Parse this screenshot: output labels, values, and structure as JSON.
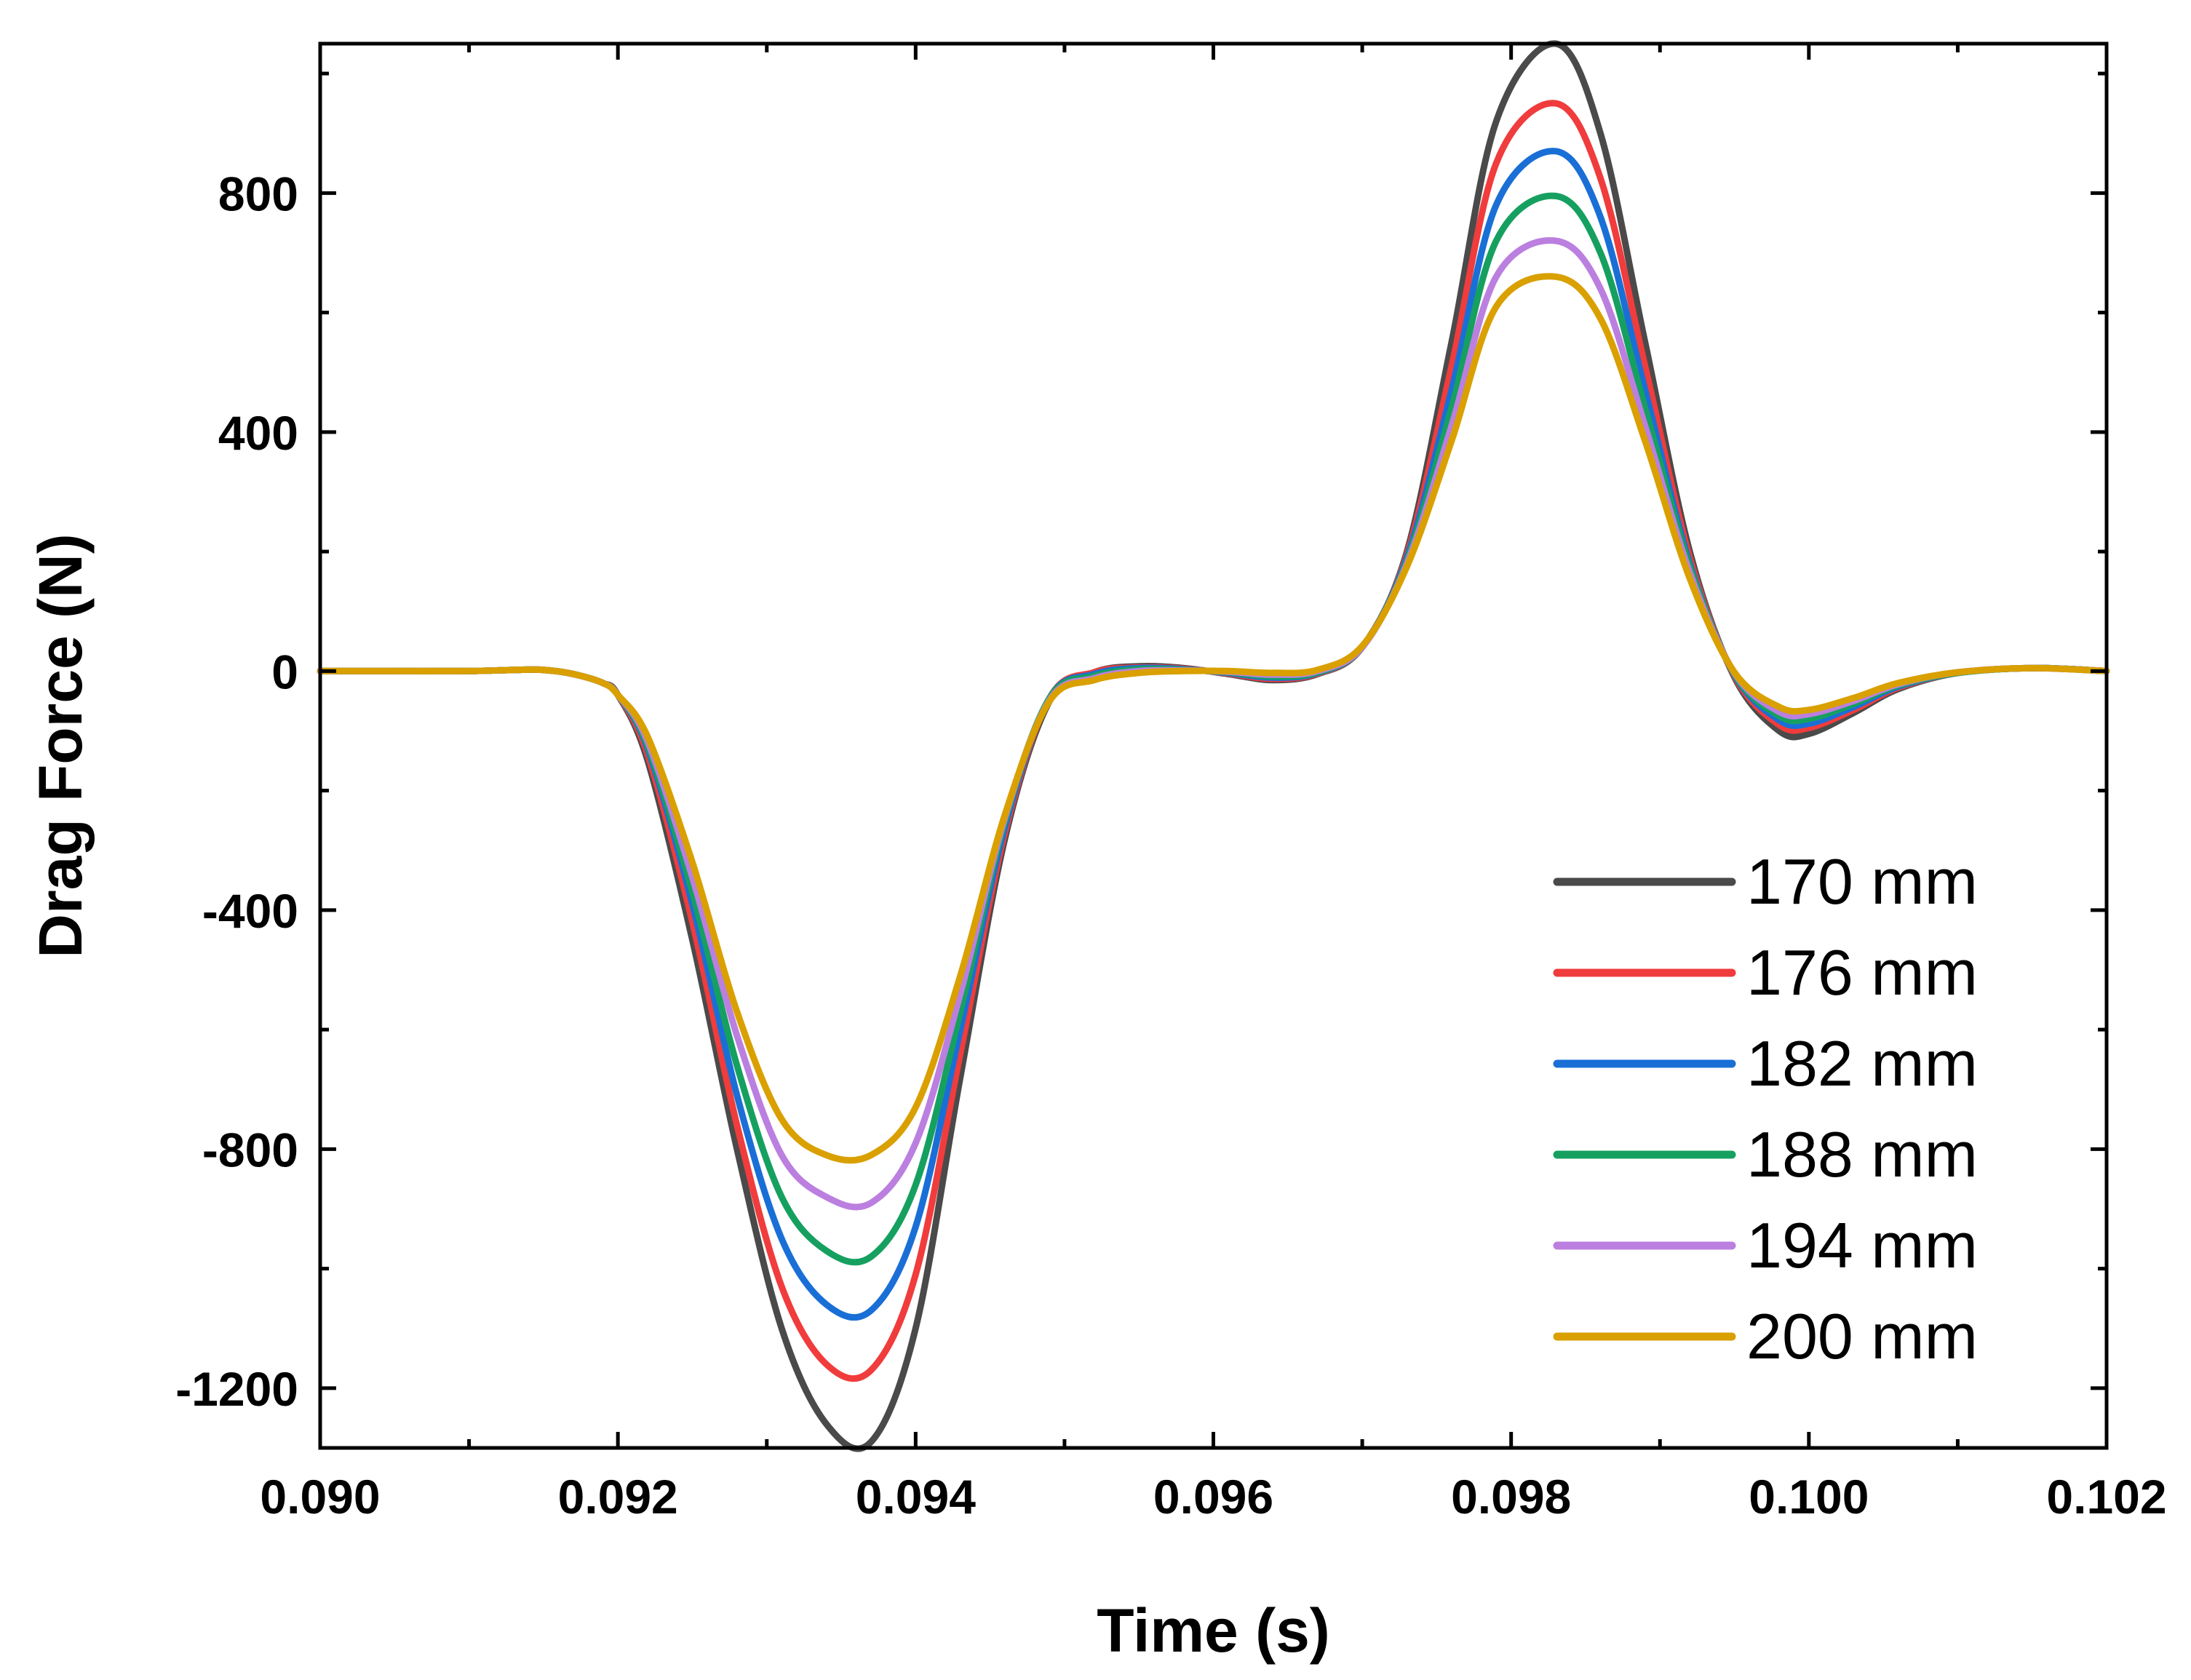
{
  "chart_data": {
    "type": "line",
    "title": "",
    "xlabel": "Time (s)",
    "ylabel": "Drag Force (N)",
    "xlim": [
      0.09,
      0.102
    ],
    "ylim": [
      -1300,
      1050
    ],
    "x_ticks": [
      "0.090",
      "0.092",
      "0.094",
      "0.096",
      "0.098",
      "0.100",
      "0.102"
    ],
    "x_tick_values": [
      0.09,
      0.092,
      0.094,
      0.096,
      0.098,
      0.1,
      0.102
    ],
    "y_ticks": [
      "-1200",
      "-800",
      "-400",
      "0",
      "400",
      "800"
    ],
    "y_tick_values": [
      -1200,
      -800,
      -400,
      0,
      400,
      800
    ],
    "grid": false,
    "legend_position": "bottom-right",
    "x": [
      0.09,
      0.0905,
      0.091,
      0.0913,
      0.0915,
      0.0917,
      0.0919,
      0.092,
      0.0922,
      0.0925,
      0.0928,
      0.0931,
      0.0934,
      0.0937,
      0.094,
      0.0943,
      0.0946,
      0.0949,
      0.0952,
      0.0955,
      0.0958,
      0.0961,
      0.0964,
      0.0967,
      0.097,
      0.0973,
      0.0976,
      0.0979,
      0.0983,
      0.0986,
      0.0989,
      0.0992,
      0.0995,
      0.0998,
      0.1,
      0.1003,
      0.1006,
      0.101,
      0.1015,
      0.102
    ],
    "series": [
      {
        "name": "170 mm",
        "color": "#4a4a4a",
        "values": [
          0,
          0,
          0,
          2,
          2,
          -5,
          -20,
          -40,
          -150,
          -450,
          -800,
          -1100,
          -1260,
          -1290,
          -1100,
          -680,
          -280,
          -50,
          -2,
          8,
          5,
          -5,
          -15,
          -5,
          40,
          200,
          550,
          920,
          1050,
          900,
          550,
          200,
          -10,
          -100,
          -105,
          -70,
          -30,
          -3,
          5,
          0
        ]
      },
      {
        "name": "176 mm",
        "color": "#f03c3c",
        "values": [
          0,
          0,
          0,
          2,
          2,
          -5,
          -20,
          -40,
          -140,
          -420,
          -760,
          -1030,
          -1160,
          -1170,
          -1010,
          -640,
          -270,
          -45,
          -2,
          6,
          4,
          -4,
          -13,
          -4,
          40,
          195,
          510,
          850,
          950,
          825,
          510,
          190,
          -8,
          -90,
          -95,
          -65,
          -28,
          -3,
          5,
          0
        ]
      },
      {
        "name": "182 mm",
        "color": "#1a6fd6",
        "values": [
          0,
          0,
          0,
          2,
          2,
          -5,
          -20,
          -40,
          -130,
          -390,
          -710,
          -950,
          -1060,
          -1070,
          -930,
          -600,
          -260,
          -45,
          -5,
          5,
          3,
          -3,
          -11,
          -3,
          40,
          190,
          470,
          780,
          870,
          760,
          470,
          180,
          -6,
          -82,
          -88,
          -60,
          -26,
          -3,
          5,
          0
        ]
      },
      {
        "name": "188 mm",
        "color": "#16a060",
        "values": [
          0,
          0,
          0,
          2,
          2,
          -5,
          -20,
          -40,
          -125,
          -370,
          -660,
          -880,
          -970,
          -980,
          -860,
          -570,
          -250,
          -45,
          -8,
          3,
          2,
          -2,
          -9,
          -2,
          40,
          185,
          440,
          720,
          795,
          700,
          440,
          175,
          -5,
          -75,
          -80,
          -55,
          -24,
          -3,
          5,
          0
        ]
      },
      {
        "name": "194 mm",
        "color": "#bb7fe0",
        "values": [
          0,
          0,
          0,
          2,
          2,
          -5,
          -20,
          -40,
          -118,
          -345,
          -610,
          -810,
          -880,
          -890,
          -790,
          -540,
          -245,
          -48,
          -12,
          0,
          1,
          -1,
          -6,
          0,
          40,
          180,
          410,
          660,
          720,
          640,
          410,
          165,
          -3,
          -68,
          -72,
          -50,
          -22,
          -2,
          5,
          0
        ]
      },
      {
        "name": "200 mm",
        "color": "#d9a000",
        "values": [
          0,
          0,
          0,
          2,
          2,
          -5,
          -20,
          -40,
          -110,
          -320,
          -570,
          -750,
          -810,
          -810,
          -730,
          -510,
          -240,
          -50,
          -15,
          -3,
          0,
          0,
          -3,
          2,
          42,
          175,
          385,
          610,
          660,
          590,
          385,
          155,
          -2,
          -60,
          -65,
          -45,
          -20,
          -2,
          5,
          0
        ]
      }
    ]
  }
}
